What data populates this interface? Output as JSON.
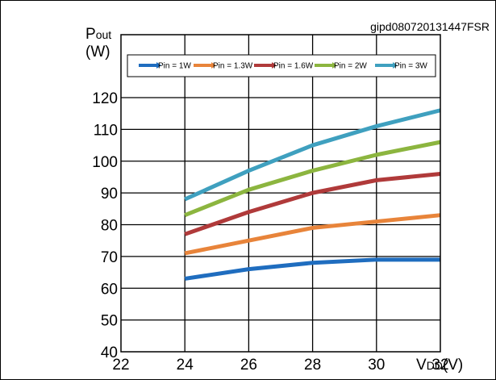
{
  "figure_code": "gipd080720131447FSR",
  "chart_data": {
    "type": "line",
    "title": "",
    "xlabel": {
      "main": "V",
      "sub": "DD",
      "unit": "(V)"
    },
    "ylabel": {
      "main": "P",
      "sub": "out",
      "unit": "(W)"
    },
    "xlim": [
      22,
      32
    ],
    "ylim": [
      40,
      120
    ],
    "x_ticks": [
      22,
      24,
      26,
      28,
      30,
      32
    ],
    "y_ticks": [
      40,
      50,
      60,
      70,
      80,
      90,
      100,
      110,
      120
    ],
    "grid": true,
    "legend_position": "top",
    "x": [
      24,
      26,
      28,
      30,
      32
    ],
    "series": [
      {
        "name": "Pin = 1W",
        "color": "#1f6dbf",
        "values": [
          63,
          66,
          68,
          69,
          69
        ]
      },
      {
        "name": "Pin = 1.3W",
        "color": "#e8843a",
        "values": [
          71,
          75,
          79,
          81,
          83
        ]
      },
      {
        "name": "Pin = 1.6W",
        "color": "#b03a3a",
        "values": [
          77,
          84,
          90,
          94,
          96
        ]
      },
      {
        "name": "Pin = 2W",
        "color": "#8cb53f",
        "values": [
          83,
          91,
          97,
          102,
          106
        ]
      },
      {
        "name": "Pin = 3W",
        "color": "#3fa0bf",
        "values": [
          88,
          97,
          105,
          111,
          116
        ]
      }
    ]
  }
}
